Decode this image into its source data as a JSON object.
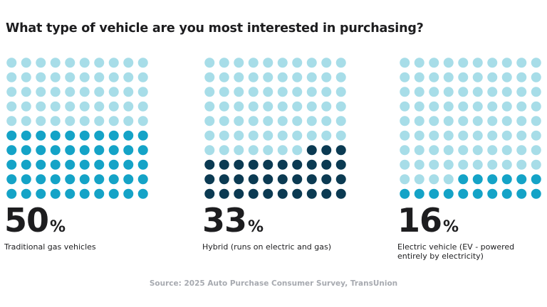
{
  "title": "What type of vehicle are you most interested in purchasing?",
  "source": "Source: 2025 Auto Purchase Consumer Survey, TransUnion",
  "colors": {
    "empty": "#a7dde8",
    "filled": [
      "#14a3c7",
      "#0b3a52",
      "#14a3c7"
    ]
  },
  "chart_data": {
    "type": "waffle",
    "title": "What type of vehicle are you most interested in purchasing?",
    "grid": {
      "rows": 10,
      "cols": 10
    },
    "series": [
      {
        "name": "Traditional gas vehicles",
        "value": 50,
        "label_number": "50",
        "label_unit": "%"
      },
      {
        "name": "Hybrid (runs on electric and gas)",
        "value": 33,
        "label_number": "33",
        "label_unit": "%"
      },
      {
        "name": "Electric vehicle (EV - powered entirely by electricity)",
        "value": 16,
        "label_number": "16",
        "label_unit": "%"
      }
    ]
  }
}
